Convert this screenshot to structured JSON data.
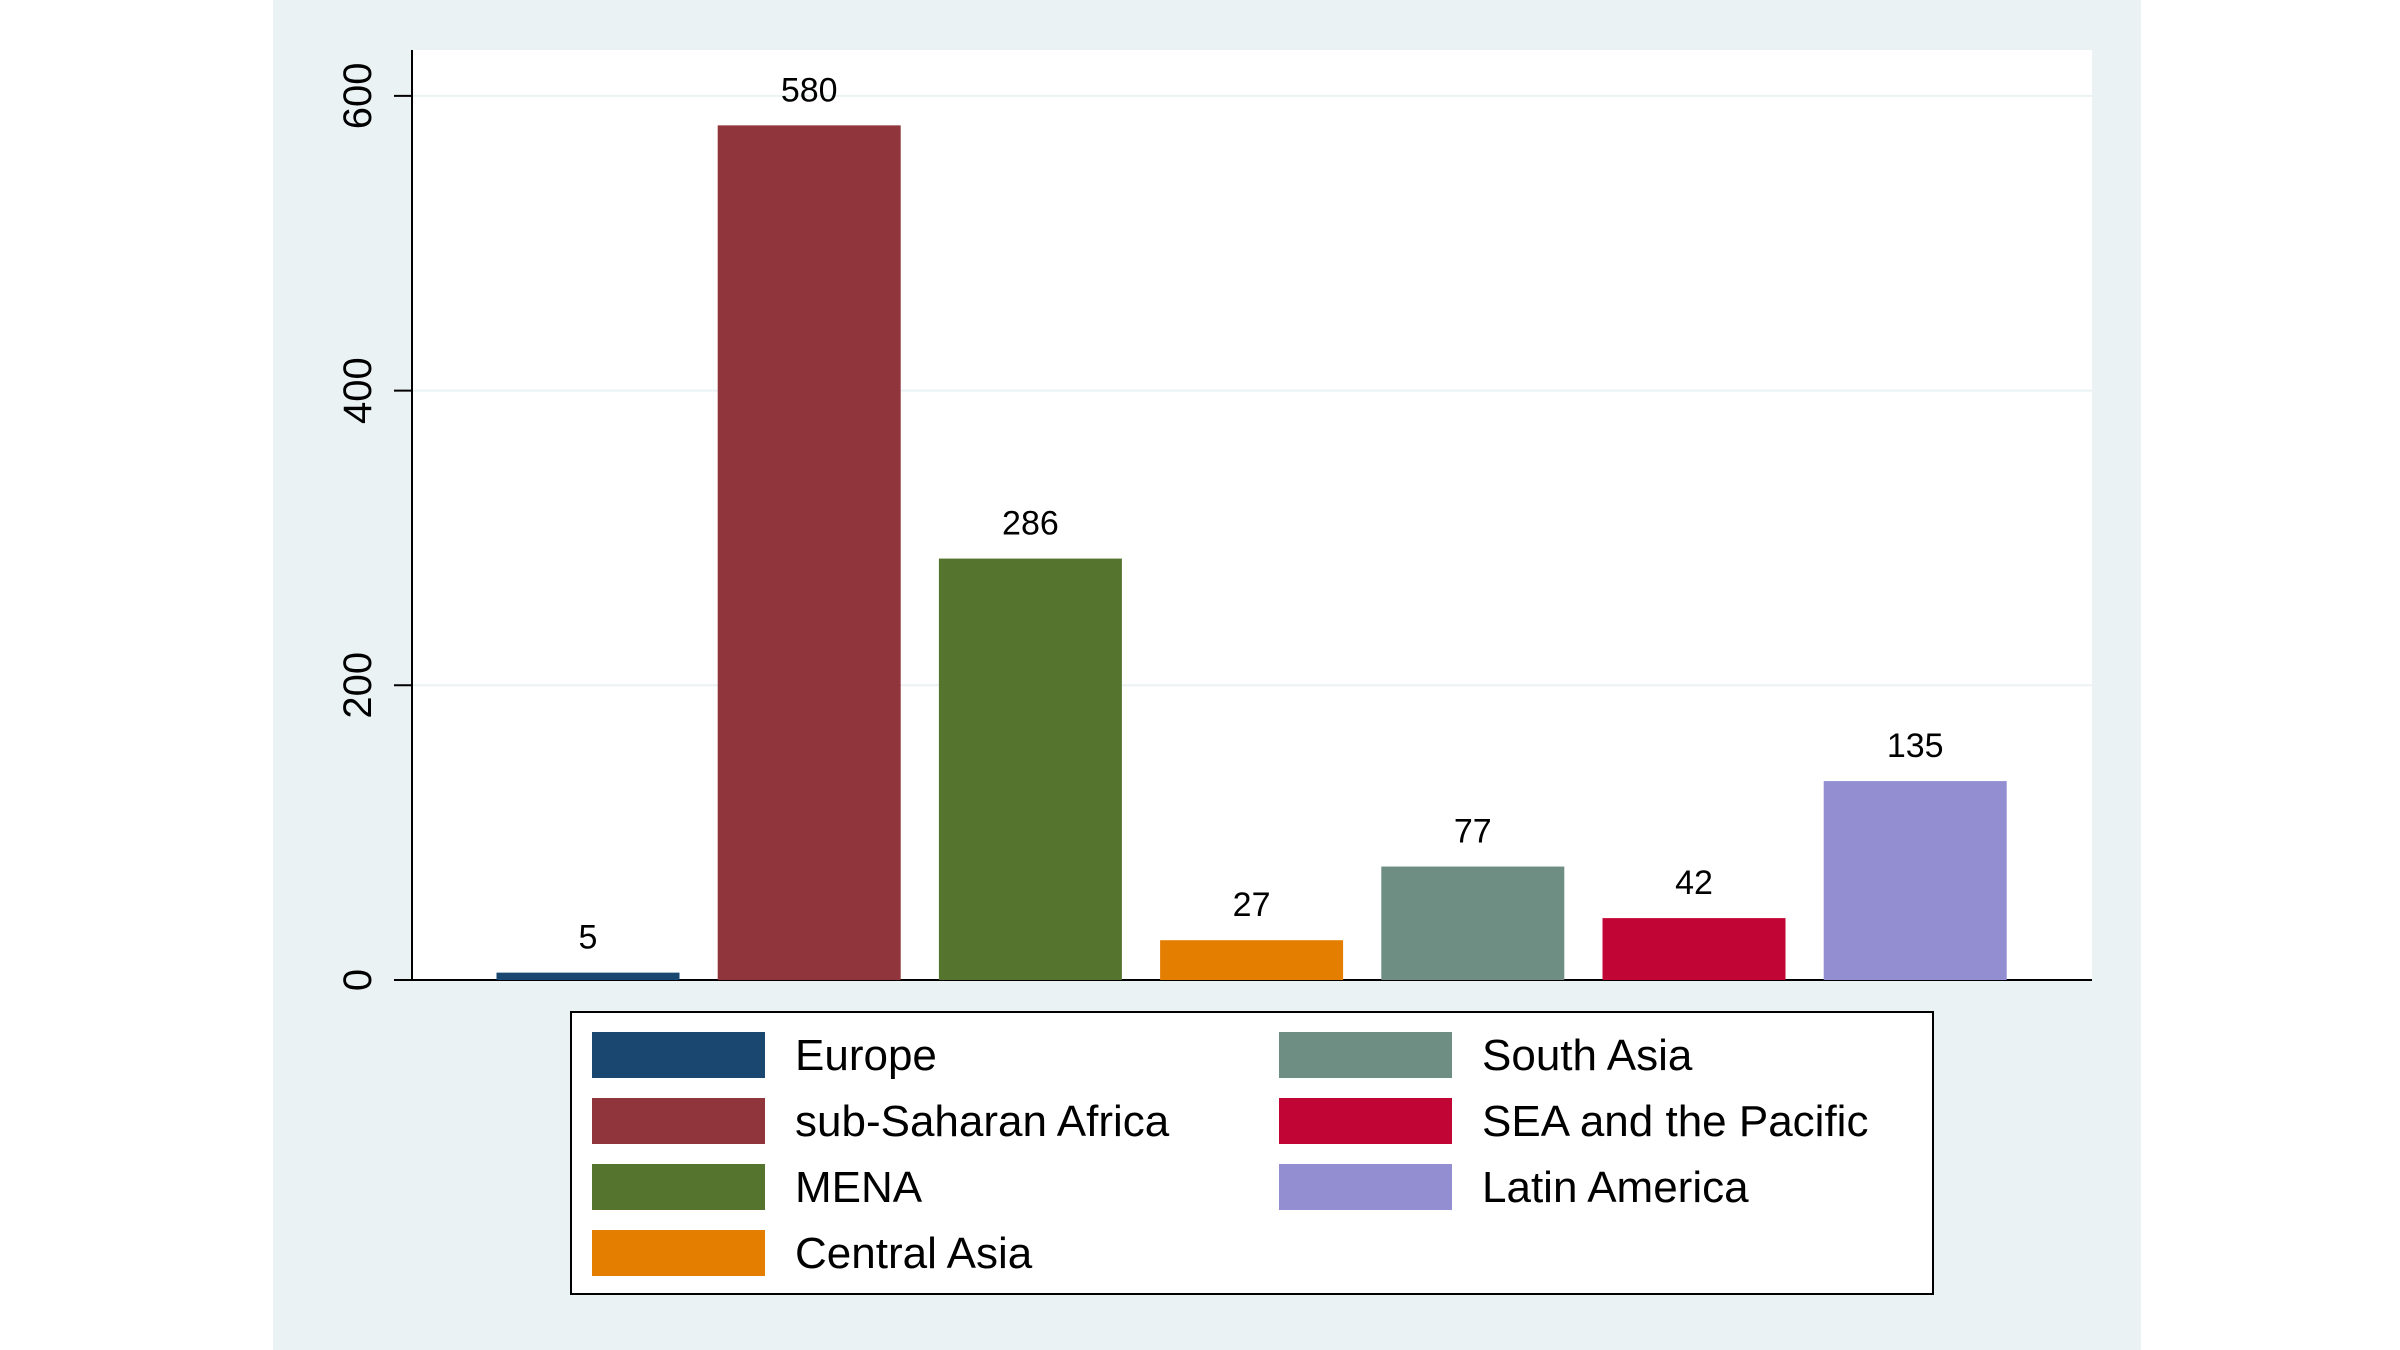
{
  "chart_data": {
    "type": "bar",
    "title": "",
    "xlabel": "",
    "ylabel": "",
    "ylim": [
      0,
      630
    ],
    "yticks": [
      0,
      200,
      400,
      600
    ],
    "grid": true,
    "legend_position": "bottom",
    "series": [
      {
        "name": "Europe",
        "value": 5,
        "color": "#1a476f"
      },
      {
        "name": "sub-Saharan Africa",
        "value": 580,
        "color": "#90353b"
      },
      {
        "name": "MENA",
        "value": 286,
        "color": "#55752f"
      },
      {
        "name": "Central Asia",
        "value": 27,
        "color": "#e37e00"
      },
      {
        "name": "South Asia",
        "value": 77,
        "color": "#6e8e84"
      },
      {
        "name": "SEA and the Pacific",
        "value": 42,
        "color": "#c10534"
      },
      {
        "name": "Latin America",
        "value": 135,
        "color": "#938dd2"
      }
    ]
  }
}
